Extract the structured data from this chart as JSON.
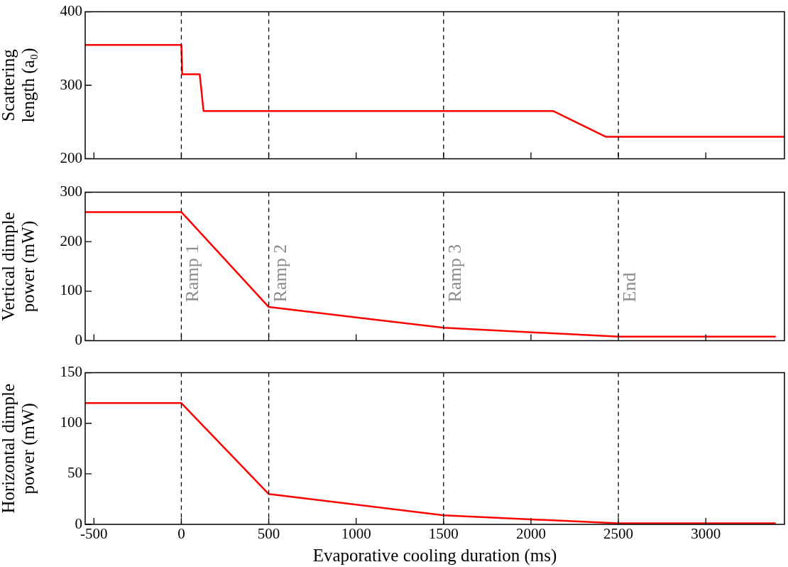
{
  "chart_data": [
    {
      "type": "line",
      "ylabel": "Scattering length (a₀)",
      "x": [
        -550,
        0,
        5,
        105,
        127,
        2126,
        2427,
        3450
      ],
      "xlim": [
        -550,
        3450
      ],
      "xticks": [
        -500,
        0,
        500,
        1000,
        1500,
        2000,
        2500,
        3000
      ],
      "ylim": [
        200,
        400
      ],
      "yticks": [
        200,
        300,
        400
      ],
      "tick_labels": "y",
      "grid": false,
      "legend": false,
      "marker": "none",
      "series": [
        {
          "color": "#ff0000",
          "values": [
            355,
            355,
            315,
            315,
            265,
            265,
            230,
            230
          ]
        }
      ],
      "ref_lines": [
        {
          "axis": "x",
          "value": 0,
          "color": "#000000",
          "line_style": "dashed"
        },
        {
          "axis": "x",
          "value": 500,
          "color": "#000000",
          "line_style": "dashed"
        },
        {
          "axis": "x",
          "value": 1500,
          "color": "#000000",
          "line_style": "dashed"
        },
        {
          "axis": "x",
          "value": 2500,
          "color": "#000000",
          "line_style": "dashed"
        }
      ]
    },
    {
      "type": "line",
      "ylabel": "Vertical dimple power (mW)",
      "x": [
        -550,
        0,
        500,
        1500,
        2500,
        3400
      ],
      "xlim": [
        -550,
        3450
      ],
      "xticks": [
        -500,
        0,
        500,
        1000,
        1500,
        2000,
        2500,
        3000
      ],
      "ylim": [
        0,
        300
      ],
      "yticks": [
        0,
        100,
        200,
        300
      ],
      "tick_labels": "y",
      "grid": false,
      "legend": false,
      "marker": "none",
      "series": [
        {
          "color": "#ff0000",
          "values": [
            260,
            260,
            68,
            26,
            8,
            8
          ]
        }
      ],
      "ref_lines": [
        {
          "axis": "x",
          "value": 0,
          "label": "Ramp 1",
          "color": "#000000",
          "line_style": "dashed"
        },
        {
          "axis": "x",
          "value": 500,
          "label": "Ramp 2",
          "color": "#000000",
          "line_style": "dashed"
        },
        {
          "axis": "x",
          "value": 1500,
          "label": "Ramp 3",
          "color": "#000000",
          "line_style": "dashed"
        },
        {
          "axis": "x",
          "value": 2500,
          "label": "End",
          "color": "#000000",
          "line_style": "dashed"
        }
      ]
    },
    {
      "type": "line",
      "ylabel": "Horizontal dimple power (mW)",
      "xlabel": "Evaporative cooling duration (ms)",
      "x": [
        -550,
        0,
        500,
        1500,
        2500,
        3400
      ],
      "xlim": [
        -550,
        3450
      ],
      "xticks": [
        -500,
        0,
        500,
        1000,
        1500,
        2000,
        2500,
        3000
      ],
      "ylim": [
        0,
        150
      ],
      "yticks": [
        0,
        50,
        100,
        150
      ],
      "grid": false,
      "legend": false,
      "marker": "none",
      "series": [
        {
          "color": "#ff0000",
          "values": [
            120,
            120,
            30,
            9,
            1,
            1
          ]
        }
      ],
      "ref_lines": [
        {
          "axis": "x",
          "value": 0,
          "color": "#000000",
          "line_style": "dashed"
        },
        {
          "axis": "x",
          "value": 500,
          "color": "#000000",
          "line_style": "dashed"
        },
        {
          "axis": "x",
          "value": 1500,
          "color": "#000000",
          "line_style": "dashed"
        },
        {
          "axis": "x",
          "value": 2500,
          "color": "#000000",
          "line_style": "dashed"
        }
      ]
    }
  ]
}
